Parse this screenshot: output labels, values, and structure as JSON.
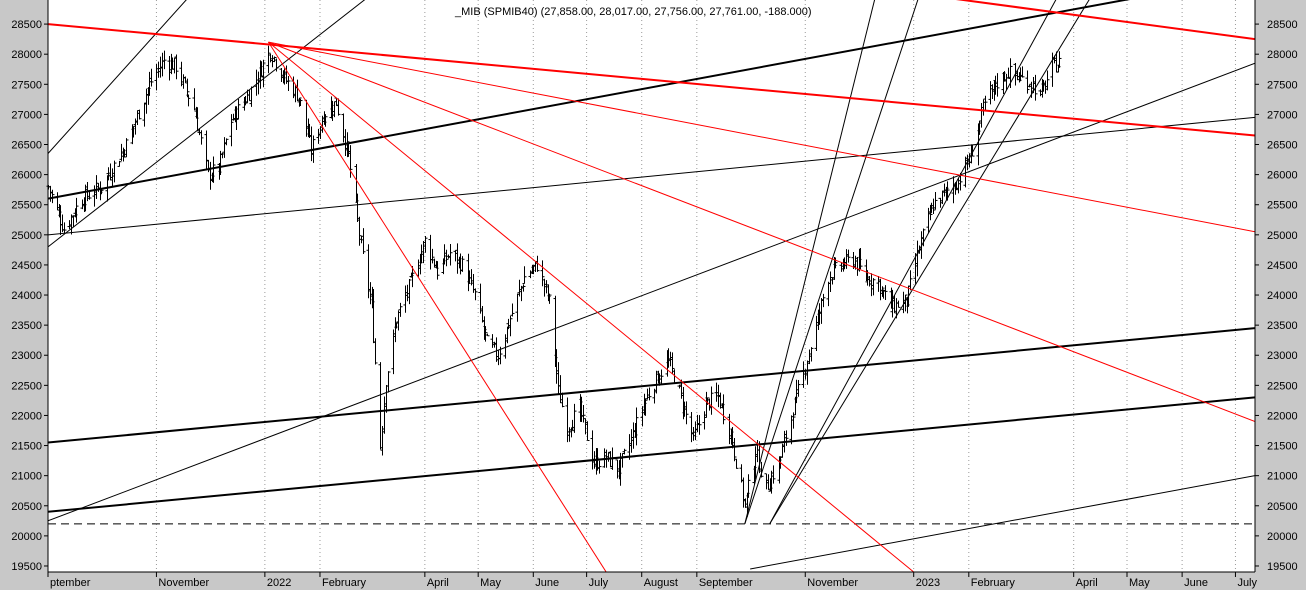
{
  "chart_data": {
    "type": "candlestick",
    "title": "_MIB (SPMIB40) (27,858.00, 28,017.00, 27,756.00, 27,761.00, -188.000)",
    "ylim": [
      19400,
      28900
    ],
    "y_ticks": [
      19500,
      20000,
      20500,
      21000,
      21500,
      22000,
      22500,
      23000,
      23500,
      24000,
      24500,
      25000,
      25500,
      26000,
      26500,
      27000,
      27500,
      28000,
      28500
    ],
    "x_domain": [
      "2021-09-01",
      "2023-07-12"
    ],
    "x_ticks": [
      {
        "date": "2021-09-01",
        "label": "ptember"
      },
      {
        "date": "2021-11-01",
        "label": "November"
      },
      {
        "date": "2022-01-01",
        "label": "2022"
      },
      {
        "date": "2022-02-01",
        "label": "February"
      },
      {
        "date": "2022-04-01",
        "label": "April"
      },
      {
        "date": "2022-05-01",
        "label": "May"
      },
      {
        "date": "2022-06-01",
        "label": "June"
      },
      {
        "date": "2022-07-01",
        "label": "July"
      },
      {
        "date": "2022-08-01",
        "label": "August"
      },
      {
        "date": "2022-09-01",
        "label": "September"
      },
      {
        "date": "2022-11-01",
        "label": "November"
      },
      {
        "date": "2023-01-01",
        "label": "2023"
      },
      {
        "date": "2023-02-01",
        "label": "February"
      },
      {
        "date": "2023-04-01",
        "label": "April"
      },
      {
        "date": "2023-05-01",
        "label": "May"
      },
      {
        "date": "2023-06-01",
        "label": "June"
      },
      {
        "date": "2023-07-01",
        "label": "July"
      }
    ],
    "price_path": [
      [
        "2021-09-01",
        25800
      ],
      [
        "2021-09-10",
        25100
      ],
      [
        "2021-09-20",
        25600
      ],
      [
        "2021-10-01",
        25800
      ],
      [
        "2021-10-15",
        26500
      ],
      [
        "2021-10-28",
        27500
      ],
      [
        "2021-11-05",
        27900
      ],
      [
        "2021-11-12",
        27800
      ],
      [
        "2021-11-22",
        27100
      ],
      [
        "2021-11-30",
        26000
      ],
      [
        "2021-12-06",
        26100
      ],
      [
        "2021-12-13",
        26900
      ],
      [
        "2021-12-22",
        27300
      ],
      [
        "2022-01-04",
        28050
      ],
      [
        "2022-01-12",
        27600
      ],
      [
        "2022-01-20",
        27300
      ],
      [
        "2022-01-27",
        26400
      ],
      [
        "2022-02-03",
        27000
      ],
      [
        "2022-02-10",
        27200
      ],
      [
        "2022-02-17",
        26300
      ],
      [
        "2022-02-24",
        24800
      ],
      [
        "2022-03-02",
        23800
      ],
      [
        "2022-03-07",
        21500
      ],
      [
        "2022-03-10",
        22600
      ],
      [
        "2022-03-16",
        23600
      ],
      [
        "2022-03-24",
        24200
      ],
      [
        "2022-04-01",
        24900
      ],
      [
        "2022-04-08",
        24400
      ],
      [
        "2022-04-15",
        24700
      ],
      [
        "2022-04-22",
        24500
      ],
      [
        "2022-04-29",
        24000
      ],
      [
        "2022-05-06",
        23200
      ],
      [
        "2022-05-12",
        23000
      ],
      [
        "2022-05-20",
        23700
      ],
      [
        "2022-05-27",
        24300
      ],
      [
        "2022-06-03",
        24500
      ],
      [
        "2022-06-10",
        23900
      ],
      [
        "2022-06-15",
        22400
      ],
      [
        "2022-06-20",
        21800
      ],
      [
        "2022-06-27",
        22100
      ],
      [
        "2022-07-05",
        21200
      ],
      [
        "2022-07-12",
        21300
      ],
      [
        "2022-07-19",
        21100
      ],
      [
        "2022-07-26",
        21600
      ],
      [
        "2022-08-02",
        22200
      ],
      [
        "2022-08-09",
        22600
      ],
      [
        "2022-08-16",
        22900
      ],
      [
        "2022-08-23",
        22300
      ],
      [
        "2022-08-30",
        21600
      ],
      [
        "2022-09-06",
        22200
      ],
      [
        "2022-09-13",
        22300
      ],
      [
        "2022-09-20",
        21700
      ],
      [
        "2022-09-28",
        20500
      ],
      [
        "2022-10-04",
        21400
      ],
      [
        "2022-10-10",
        20800
      ],
      [
        "2022-10-17",
        21200
      ],
      [
        "2022-10-24",
        22000
      ],
      [
        "2022-10-31",
        22700
      ],
      [
        "2022-11-07",
        23500
      ],
      [
        "2022-11-14",
        24300
      ],
      [
        "2022-11-21",
        24500
      ],
      [
        "2022-11-28",
        24600
      ],
      [
        "2022-12-05",
        24300
      ],
      [
        "2022-12-12",
        24200
      ],
      [
        "2022-12-19",
        23800
      ],
      [
        "2022-12-28",
        23900
      ],
      [
        "2023-01-05",
        24900
      ],
      [
        "2023-01-12",
        25500
      ],
      [
        "2023-01-19",
        25700
      ],
      [
        "2023-01-26",
        25900
      ],
      [
        "2023-02-02",
        26300
      ],
      [
        "2023-02-09",
        27100
      ],
      [
        "2023-02-16",
        27500
      ],
      [
        "2023-02-23",
        27700
      ],
      [
        "2023-03-02",
        27600
      ],
      [
        "2023-03-09",
        27500
      ],
      [
        "2023-03-13",
        27300
      ],
      [
        "2023-03-16",
        27500
      ],
      [
        "2023-03-20",
        27800
      ],
      [
        "2023-03-24",
        27850
      ]
    ],
    "trend_lines": [
      {
        "color": "#000000",
        "width": 2,
        "from": [
          "2021-09-01",
          25600
        ],
        "to": [
          "2023-07-12",
          29300
        ]
      },
      {
        "color": "#000000",
        "width": 2,
        "from": [
          "2021-09-01",
          21550
        ],
        "to": [
          "2023-07-12",
          23450
        ]
      },
      {
        "color": "#000000",
        "width": 2,
        "from": [
          "2021-09-01",
          20400
        ],
        "to": [
          "2023-07-12",
          22300
        ]
      },
      {
        "color": "#000000",
        "width": 1,
        "from": [
          "2021-09-01",
          25000
        ],
        "to": [
          "2023-07-12",
          26950
        ]
      },
      {
        "color": "#000000",
        "width": 1,
        "from": [
          "2021-09-01",
          20250
        ],
        "to": [
          "2023-07-12",
          27850
        ]
      },
      {
        "color": "#000000",
        "width": 1,
        "from": [
          "2021-09-01",
          24800
        ],
        "to": [
          "2022-03-24",
          29500
        ]
      },
      {
        "color": "#000000",
        "width": 1,
        "from": [
          "2021-09-01",
          26350
        ],
        "to": [
          "2021-12-06",
          29500
        ]
      },
      {
        "color": "#000000",
        "width": 1,
        "from": [
          "2022-10-01",
          19450
        ],
        "to": [
          "2023-07-12",
          21000
        ]
      },
      {
        "color": "#000000",
        "width": 1,
        "from": [
          "2022-09-28",
          20200
        ],
        "to": [
          "2022-12-15",
          29500
        ]
      },
      {
        "color": "#000000",
        "width": 1,
        "from": [
          "2022-09-28",
          20200
        ],
        "to": [
          "2023-01-10",
          29500
        ]
      },
      {
        "color": "#000000",
        "width": 1,
        "from": [
          "2022-10-12",
          20200
        ],
        "to": [
          "2023-04-02",
          29500
        ]
      },
      {
        "color": "#000000",
        "width": 1,
        "from": [
          "2022-10-12",
          20200
        ],
        "to": [
          "2023-04-22",
          29500
        ]
      },
      {
        "color": "#ff0000",
        "width": 2,
        "from": [
          "2021-09-01",
          28500
        ],
        "to": [
          "2023-07-12",
          26650
        ]
      },
      {
        "color": "#ff0000",
        "width": 2,
        "from": [
          "2022-10-20",
          29300
        ],
        "to": [
          "2023-07-12",
          28250
        ]
      },
      {
        "color": "#ff0000",
        "width": 1,
        "from": [
          "2022-01-03",
          28200
        ],
        "to": [
          "2023-07-12",
          25050
        ]
      },
      {
        "color": "#ff0000",
        "width": 1,
        "from": [
          "2022-01-03",
          28200
        ],
        "to": [
          "2023-07-12",
          21900
        ]
      },
      {
        "color": "#ff0000",
        "width": 1,
        "from": [
          "2022-01-03",
          28200
        ],
        "to": [
          "2023-01-01",
          19400
        ]
      },
      {
        "color": "#ff0000",
        "width": 1,
        "from": [
          "2022-01-03",
          28200
        ],
        "to": [
          "2022-07-12",
          19400
        ]
      }
    ],
    "horizontal_lines": [
      {
        "y": 20200,
        "color": "#000000",
        "style": "dashed"
      }
    ],
    "grid": "vertical-dotted",
    "x_tick_labels_extra": [],
    "xlabel": "",
    "ylabel": ""
  }
}
